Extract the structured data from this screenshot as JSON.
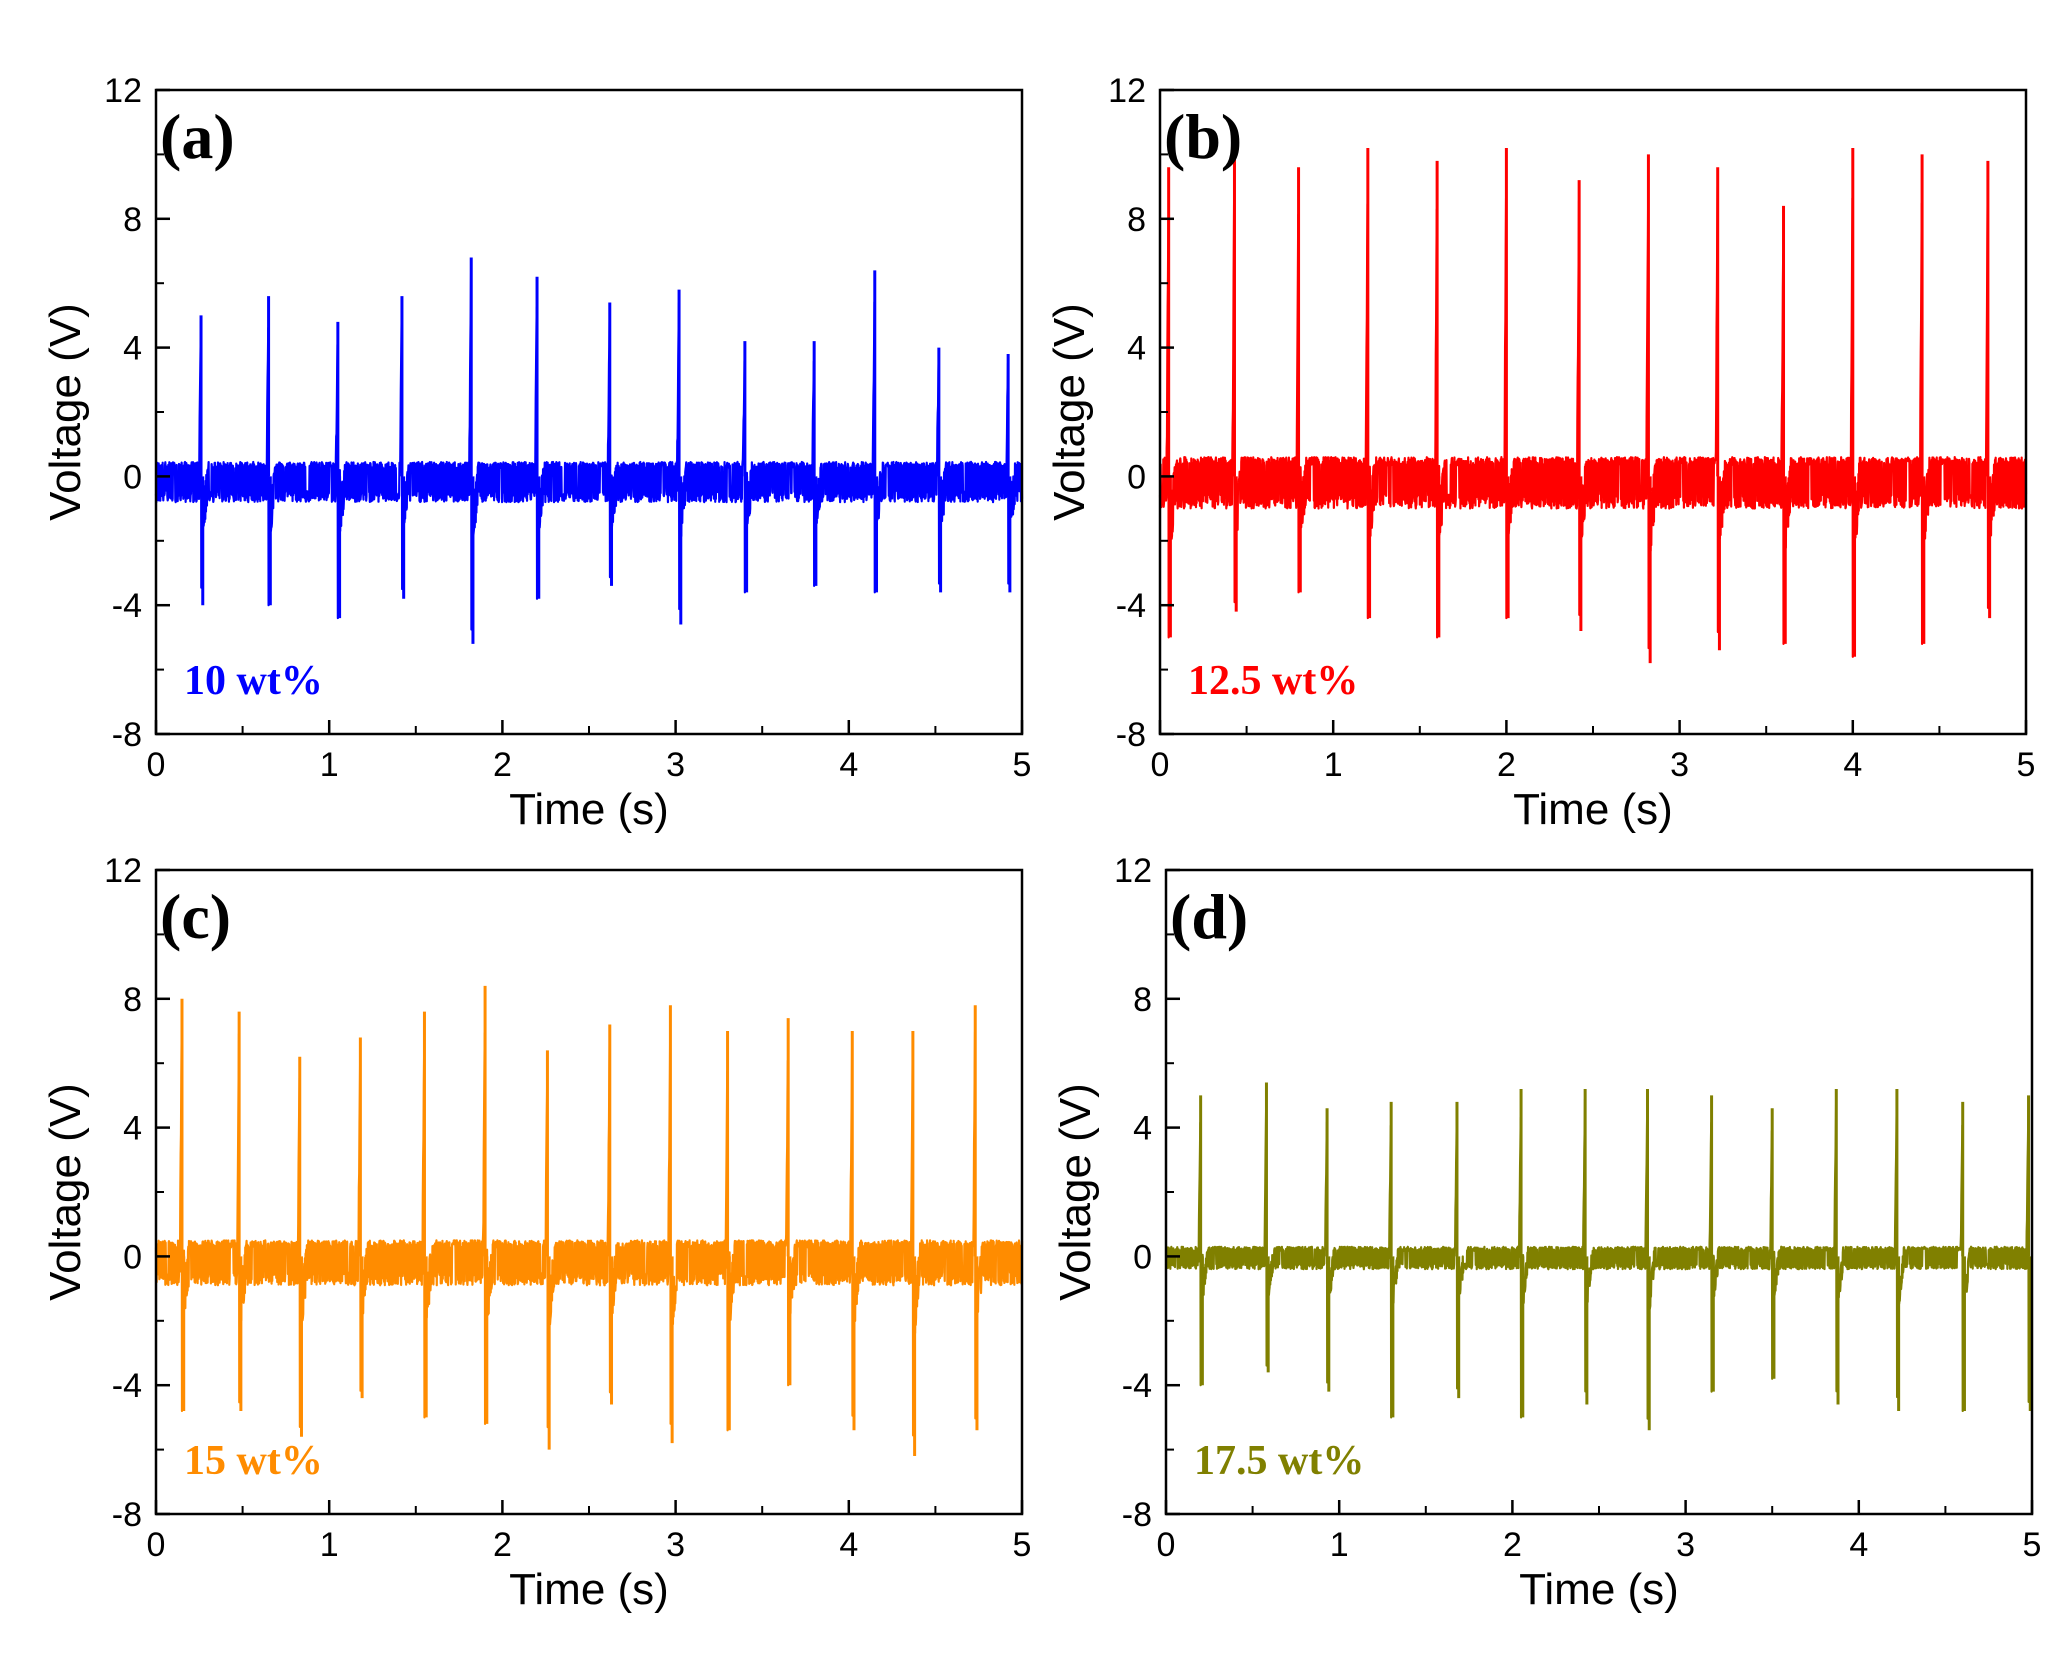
{
  "chart_data": [
    {
      "type": "line",
      "panel": "(a)",
      "series_label": "10 wt%",
      "color": "#0000ff",
      "xlabel": "Time (s)",
      "ylabel": "Voltage (V)",
      "xlim": [
        0,
        5
      ],
      "ylim": [
        -8,
        12
      ],
      "xticks": [
        "0",
        "1",
        "2",
        "3",
        "4",
        "5"
      ],
      "yticks": [
        "-8",
        "-4",
        "0",
        "4",
        "8",
        "12"
      ],
      "baseline": {
        "noise_high": 0.45,
        "noise_low": -0.8
      },
      "peaks": [
        {
          "t": 0.26,
          "max": 5.0,
          "min": -4.0
        },
        {
          "t": 0.65,
          "max": 5.6,
          "min": -4.0
        },
        {
          "t": 1.05,
          "max": 4.8,
          "min": -4.4
        },
        {
          "t": 1.42,
          "max": 5.6,
          "min": -3.8
        },
        {
          "t": 1.82,
          "max": 6.8,
          "min": -5.2
        },
        {
          "t": 2.2,
          "max": 6.2,
          "min": -3.8
        },
        {
          "t": 2.62,
          "max": 5.4,
          "min": -3.4
        },
        {
          "t": 3.02,
          "max": 5.8,
          "min": -4.6
        },
        {
          "t": 3.4,
          "max": 4.2,
          "min": -3.6
        },
        {
          "t": 3.8,
          "max": 4.2,
          "min": -3.4
        },
        {
          "t": 4.15,
          "max": 6.4,
          "min": -3.6
        },
        {
          "t": 4.52,
          "max": 4.0,
          "min": -3.6
        },
        {
          "t": 4.92,
          "max": 3.8,
          "min": -3.6
        }
      ]
    },
    {
      "type": "line",
      "panel": "(b)",
      "series_label": "12.5 wt%",
      "color": "#ff0000",
      "xlabel": "Time (s)",
      "ylabel": "Voltage (V)",
      "xlim": [
        0,
        5
      ],
      "ylim": [
        -8,
        12
      ],
      "xticks": [
        "0",
        "1",
        "2",
        "3",
        "4",
        "5"
      ],
      "yticks": [
        "-8",
        "-4",
        "0",
        "4",
        "8",
        "12"
      ],
      "baseline": {
        "noise_high": 0.6,
        "noise_low": -1.0
      },
      "peaks": [
        {
          "t": 0.05,
          "max": 9.6,
          "min": -5.0
        },
        {
          "t": 0.43,
          "max": 10.4,
          "min": -4.2
        },
        {
          "t": 0.8,
          "max": 9.6,
          "min": -3.6
        },
        {
          "t": 1.2,
          "max": 10.2,
          "min": -4.4
        },
        {
          "t": 1.6,
          "max": 9.8,
          "min": -5.0
        },
        {
          "t": 2.0,
          "max": 10.2,
          "min": -4.4
        },
        {
          "t": 2.42,
          "max": 9.2,
          "min": -4.8
        },
        {
          "t": 2.82,
          "max": 10.0,
          "min": -5.8
        },
        {
          "t": 3.22,
          "max": 9.6,
          "min": -5.4
        },
        {
          "t": 3.6,
          "max": 8.4,
          "min": -5.2
        },
        {
          "t": 4.0,
          "max": 10.2,
          "min": -5.6
        },
        {
          "t": 4.4,
          "max": 10.0,
          "min": -5.2
        },
        {
          "t": 4.78,
          "max": 9.8,
          "min": -4.4
        }
      ]
    },
    {
      "type": "line",
      "panel": "(c)",
      "series_label": "15 wt%",
      "color": "#ff8c00",
      "xlabel": "Time (s)",
      "ylabel": "Voltage (V)",
      "xlim": [
        0,
        5
      ],
      "ylim": [
        -8,
        12
      ],
      "xticks": [
        "0",
        "1",
        "2",
        "3",
        "4",
        "5"
      ],
      "yticks": [
        "-8",
        "-4",
        "0",
        "4",
        "8",
        "12"
      ],
      "baseline": {
        "noise_high": 0.5,
        "noise_low": -0.9
      },
      "peaks": [
        {
          "t": 0.15,
          "max": 8.0,
          "min": -4.8
        },
        {
          "t": 0.48,
          "max": 7.6,
          "min": -4.8
        },
        {
          "t": 0.83,
          "max": 6.2,
          "min": -5.6
        },
        {
          "t": 1.18,
          "max": 6.8,
          "min": -4.4
        },
        {
          "t": 1.55,
          "max": 7.6,
          "min": -5.0
        },
        {
          "t": 1.9,
          "max": 8.4,
          "min": -5.2
        },
        {
          "t": 2.26,
          "max": 6.4,
          "min": -6.0
        },
        {
          "t": 2.62,
          "max": 7.2,
          "min": -4.6
        },
        {
          "t": 2.97,
          "max": 7.8,
          "min": -5.8
        },
        {
          "t": 3.3,
          "max": 7.0,
          "min": -5.4
        },
        {
          "t": 3.65,
          "max": 7.4,
          "min": -4.0
        },
        {
          "t": 4.02,
          "max": 7.0,
          "min": -5.4
        },
        {
          "t": 4.37,
          "max": 7.0,
          "min": -6.2
        },
        {
          "t": 4.73,
          "max": 7.8,
          "min": -5.4
        }
      ]
    },
    {
      "type": "line",
      "panel": "(d)",
      "series_label": "17.5 wt%",
      "color": "#808000",
      "xlabel": "Time (s)",
      "ylabel": "Voltage (V)",
      "xlim": [
        0,
        5
      ],
      "ylim": [
        -8,
        12
      ],
      "xticks": [
        "0",
        "1",
        "2",
        "3",
        "4",
        "5"
      ],
      "yticks": [
        "-8",
        "-4",
        "0",
        "4",
        "8",
        "12"
      ],
      "baseline": {
        "noise_high": 0.3,
        "noise_low": -0.4
      },
      "peaks": [
        {
          "t": 0.2,
          "max": 5.0,
          "min": -4.0
        },
        {
          "t": 0.58,
          "max": 5.4,
          "min": -3.6
        },
        {
          "t": 0.93,
          "max": 4.6,
          "min": -4.2
        },
        {
          "t": 1.3,
          "max": 4.8,
          "min": -5.0
        },
        {
          "t": 1.68,
          "max": 4.8,
          "min": -4.4
        },
        {
          "t": 2.05,
          "max": 5.2,
          "min": -5.0
        },
        {
          "t": 2.42,
          "max": 5.2,
          "min": -4.6
        },
        {
          "t": 2.78,
          "max": 5.2,
          "min": -5.4
        },
        {
          "t": 3.15,
          "max": 5.0,
          "min": -4.2
        },
        {
          "t": 3.5,
          "max": 4.6,
          "min": -3.8
        },
        {
          "t": 3.87,
          "max": 5.2,
          "min": -4.6
        },
        {
          "t": 4.22,
          "max": 5.2,
          "min": -4.8
        },
        {
          "t": 4.6,
          "max": 4.8,
          "min": -4.8
        },
        {
          "t": 4.98,
          "max": 5.0,
          "min": -4.8
        }
      ]
    }
  ]
}
